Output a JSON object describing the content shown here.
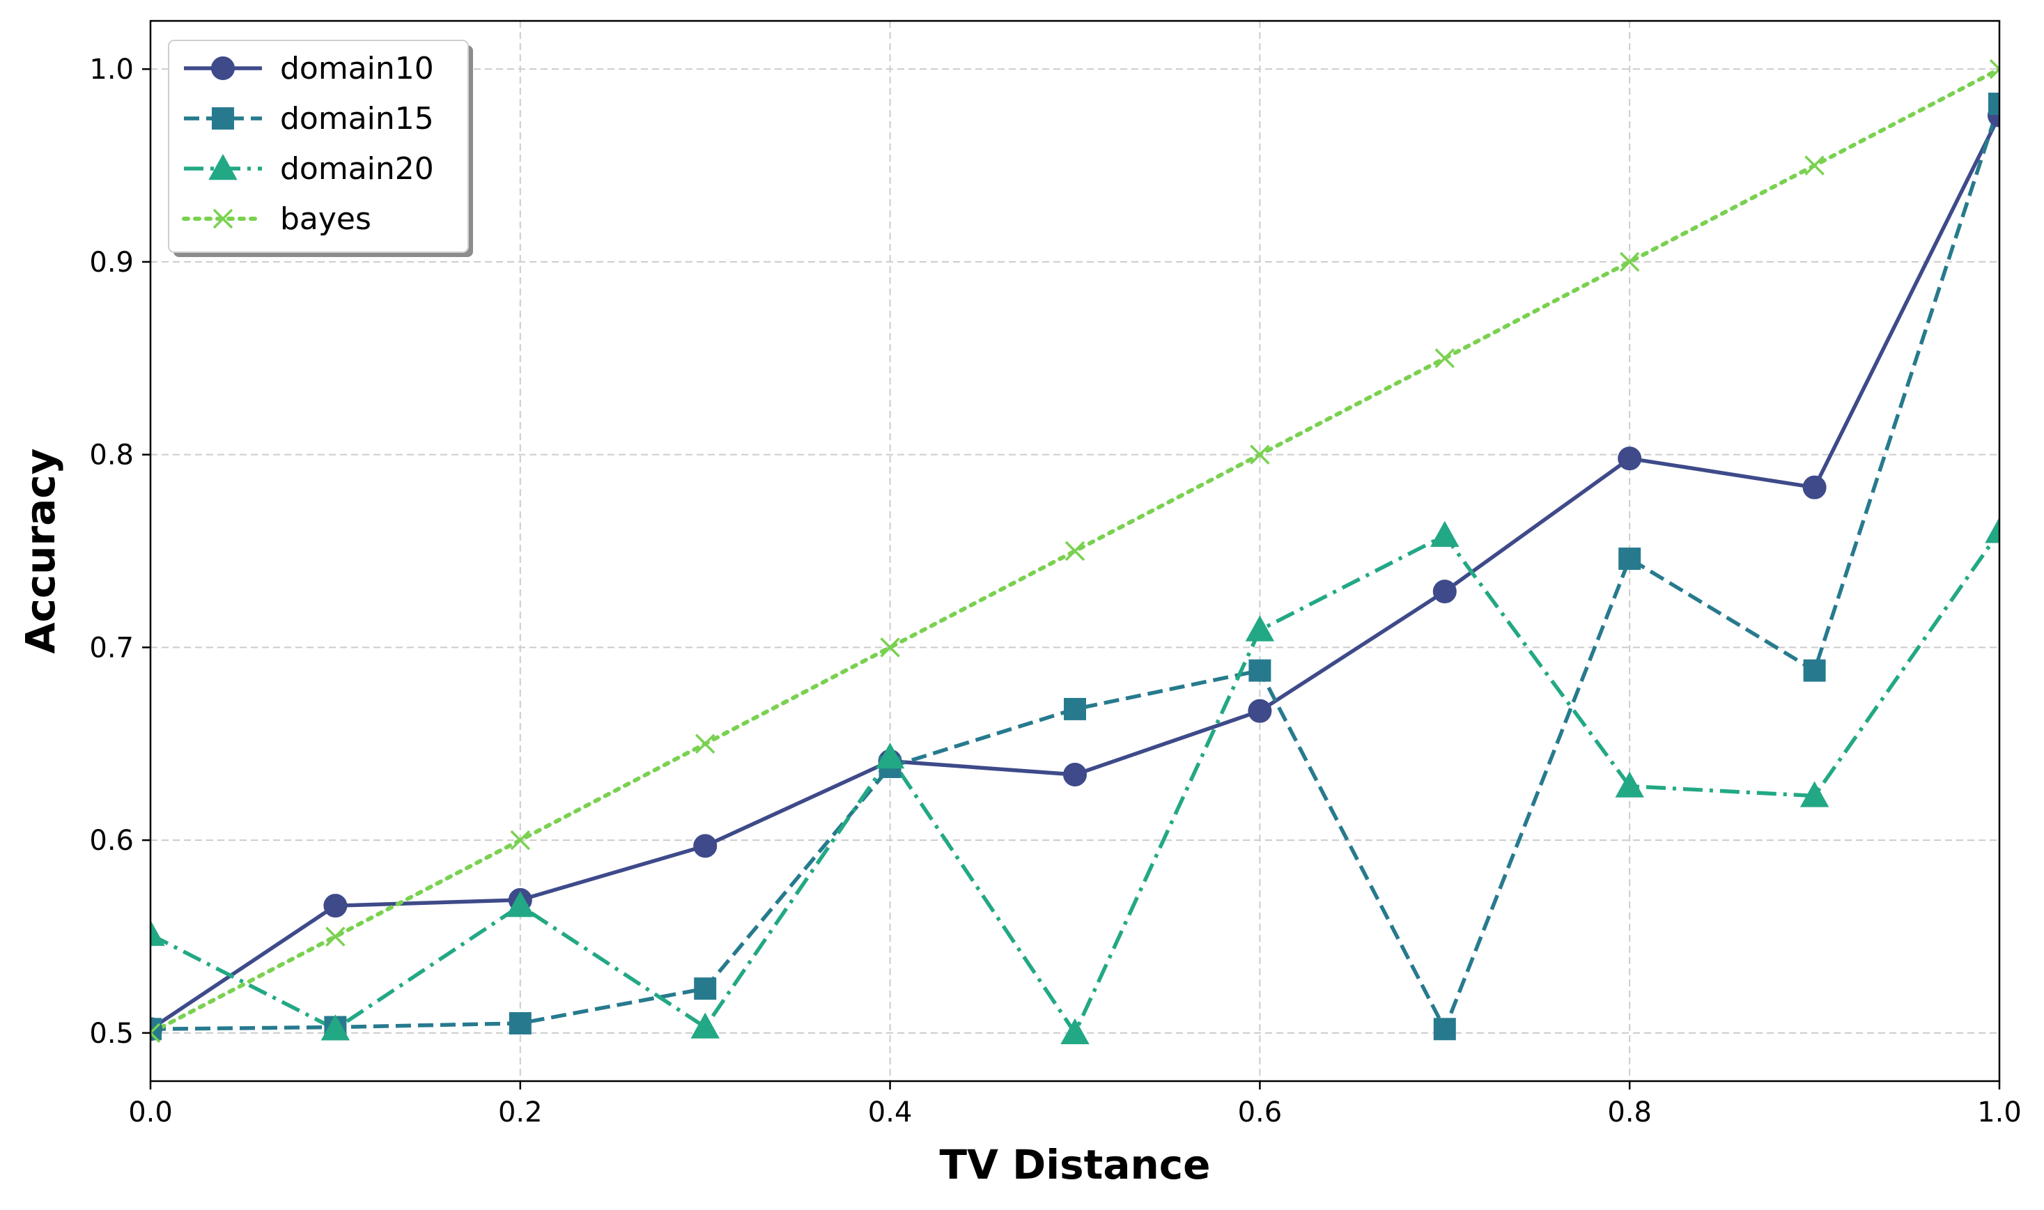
{
  "chart_data": {
    "type": "line",
    "title": "",
    "xlabel": "TV Distance",
    "ylabel": "Accuracy",
    "xlim": [
      0.0,
      1.0
    ],
    "ylim": [
      0.475,
      1.025
    ],
    "xticks": [
      0.0,
      0.2,
      0.4,
      0.6,
      0.8,
      1.0
    ],
    "xtick_labels": [
      "0.0",
      "0.2",
      "0.4",
      "0.6",
      "0.8",
      "1.0"
    ],
    "yticks": [
      0.5,
      0.6,
      0.7,
      0.8,
      0.9,
      1.0
    ],
    "ytick_labels": [
      "0.5",
      "0.6",
      "0.7",
      "0.8",
      "0.9",
      "1.0"
    ],
    "grid": true,
    "legend_position": "top-left",
    "x": [
      0.0,
      0.1,
      0.2,
      0.3,
      0.4,
      0.5,
      0.6,
      0.7,
      0.8,
      0.9,
      1.0
    ],
    "series": [
      {
        "name": "domain10",
        "color": "#3e4a89",
        "linestyle": "solid",
        "marker": "circle",
        "values": [
          0.502,
          0.566,
          0.569,
          0.597,
          0.641,
          0.634,
          0.667,
          0.729,
          0.798,
          0.783,
          0.976
        ]
      },
      {
        "name": "domain15",
        "color": "#277a8e",
        "linestyle": "dashed",
        "marker": "square",
        "values": [
          0.502,
          0.503,
          0.505,
          0.523,
          0.638,
          0.668,
          0.688,
          0.502,
          0.746,
          0.688,
          0.982
        ]
      },
      {
        "name": "domain20",
        "color": "#22a884",
        "linestyle": "dashdot",
        "marker": "triangle",
        "values": [
          0.551,
          0.502,
          0.566,
          0.503,
          0.643,
          0.5,
          0.709,
          0.758,
          0.628,
          0.623,
          0.76
        ]
      },
      {
        "name": "bayes",
        "color": "#7ad151",
        "linestyle": "dotted",
        "marker": "x",
        "values": [
          0.5,
          0.55,
          0.6,
          0.65,
          0.7,
          0.75,
          0.8,
          0.85,
          0.9,
          0.95,
          1.0
        ]
      }
    ]
  }
}
